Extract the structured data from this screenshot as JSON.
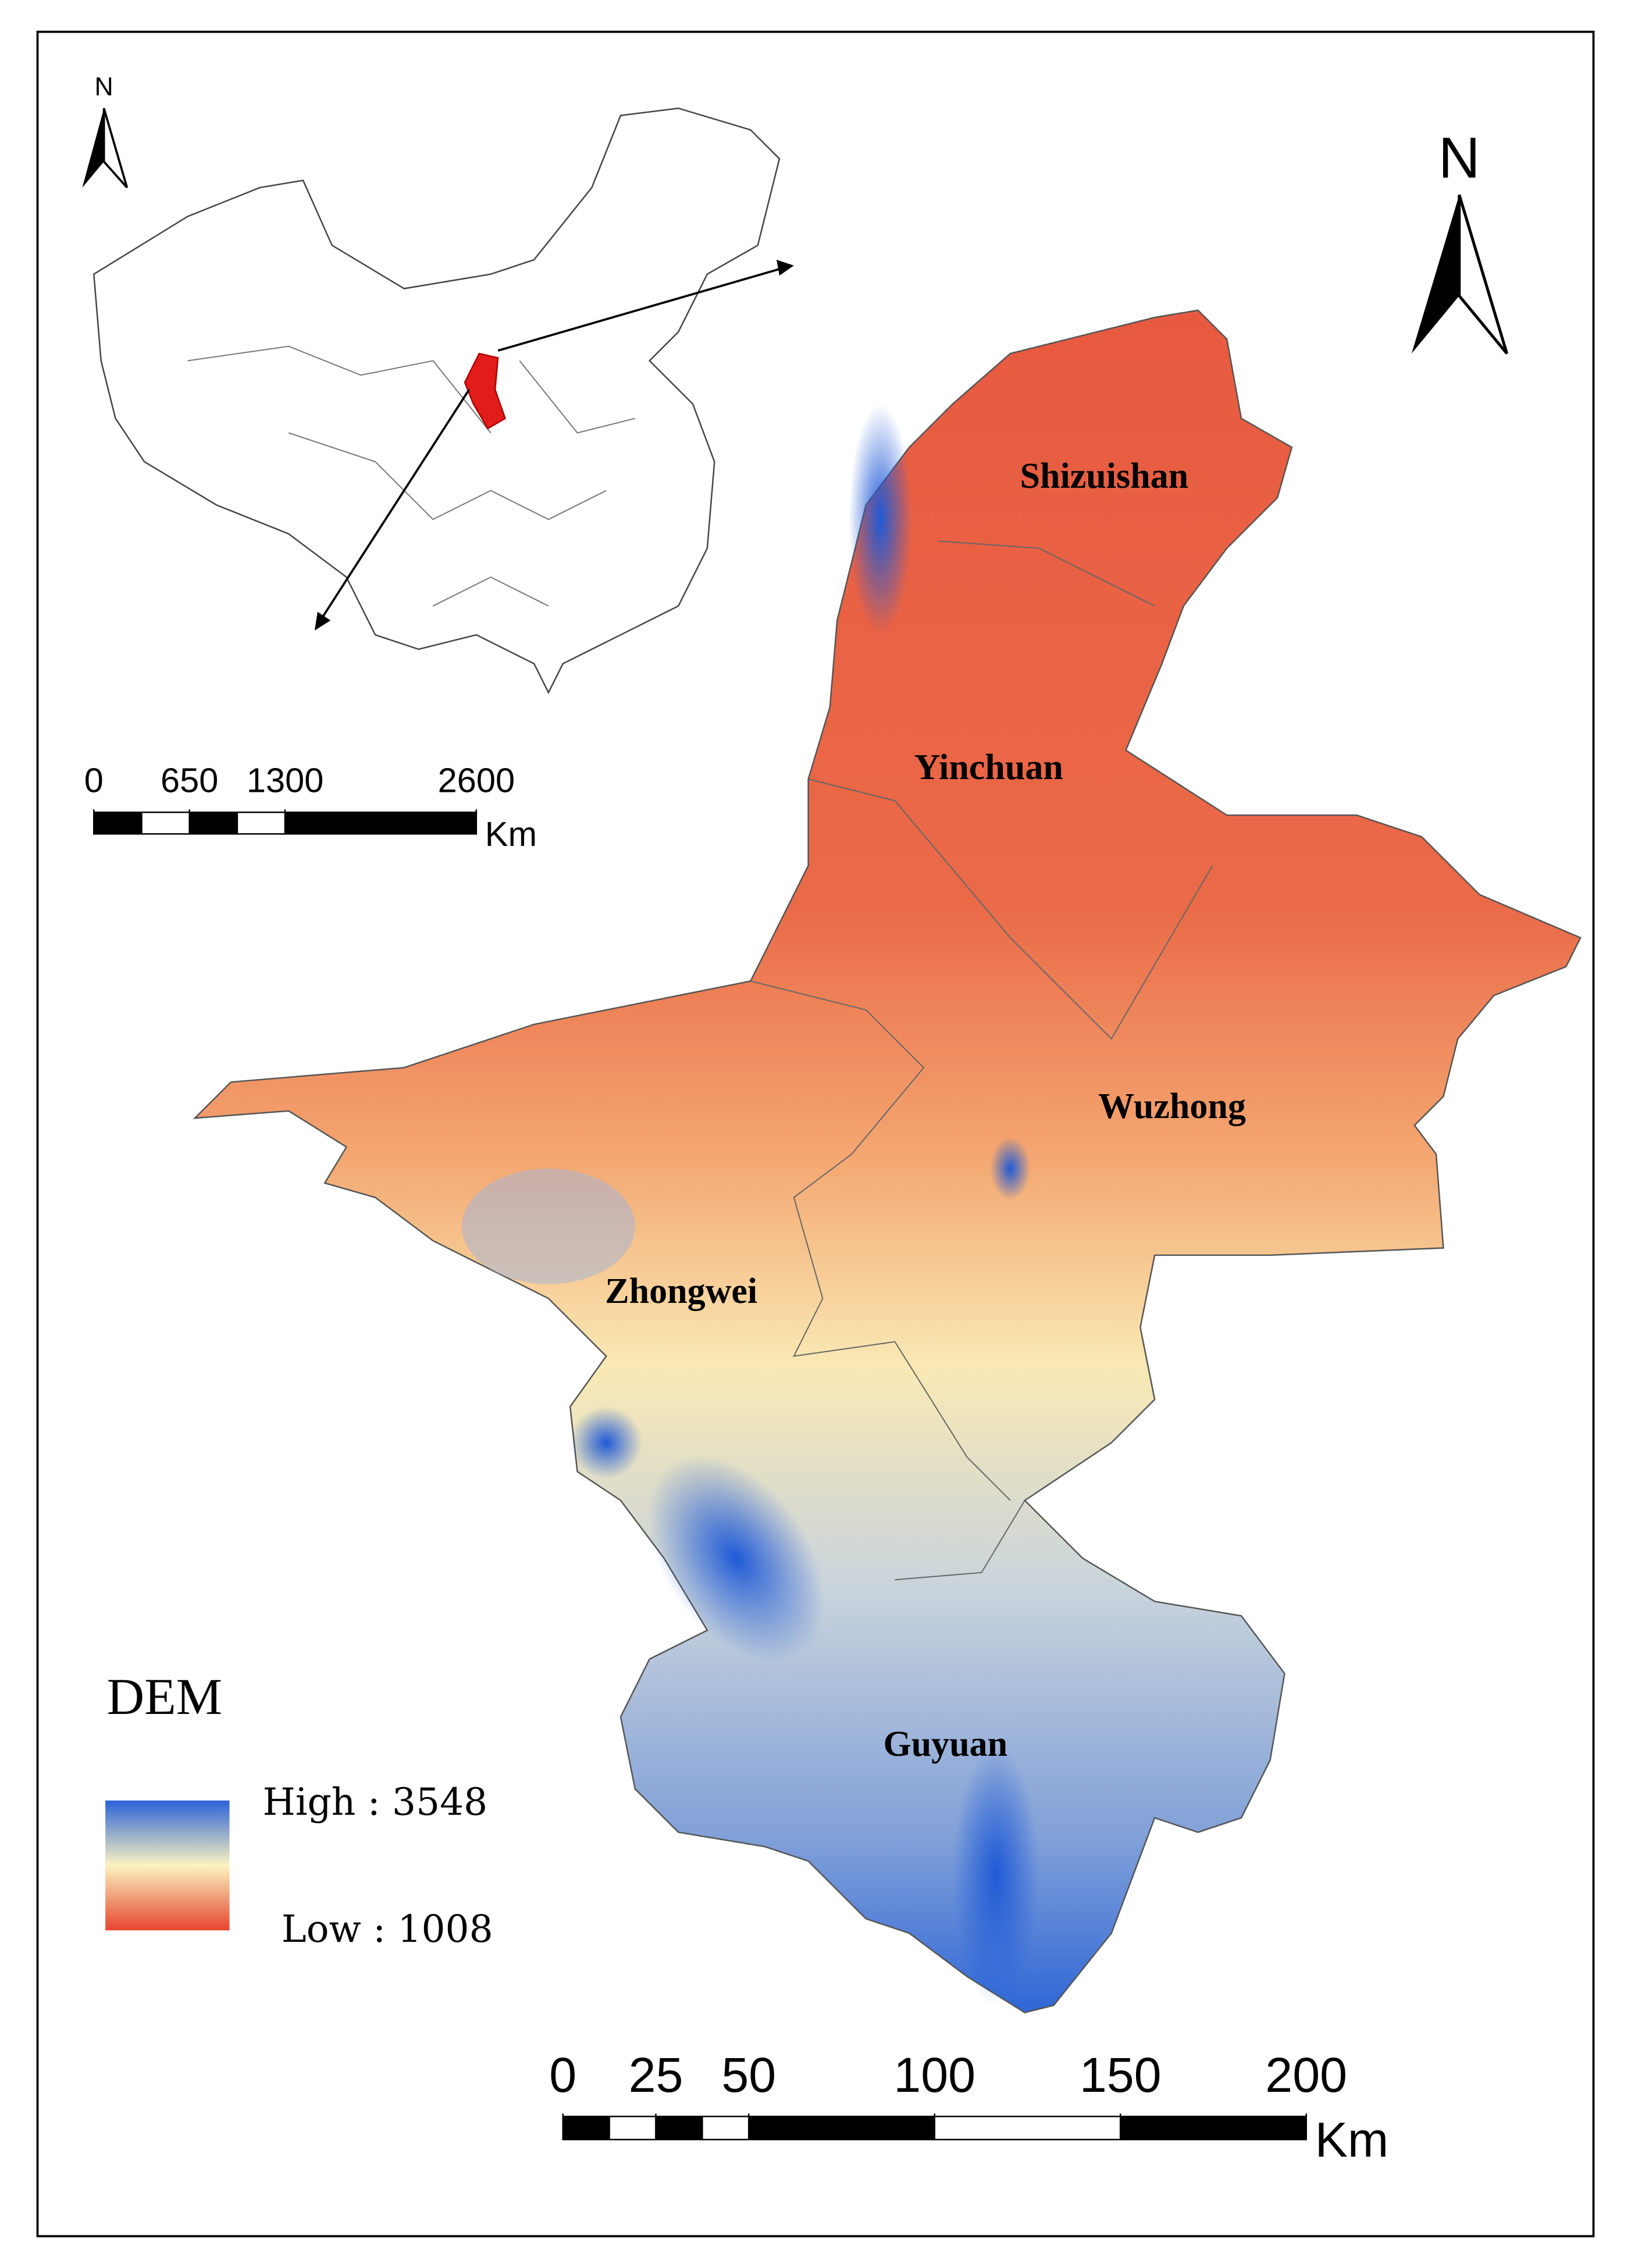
{
  "map": {
    "north_arrow": "N",
    "cities": [
      "Shizuishan",
      "Yinchuan",
      "Wuzhong",
      "Zhongwei",
      "Guyuan"
    ],
    "legend": {
      "title": "DEM",
      "high": "High : 3548",
      "low": "Low : 1008"
    },
    "scale_bar": {
      "ticks": [
        0,
        25,
        50,
        100,
        150,
        200
      ],
      "unit": "Km"
    },
    "inset": {
      "north_arrow": "N",
      "scale_bar": {
        "ticks": [
          0,
          650,
          1300,
          2600
        ],
        "unit": "Km"
      }
    }
  }
}
